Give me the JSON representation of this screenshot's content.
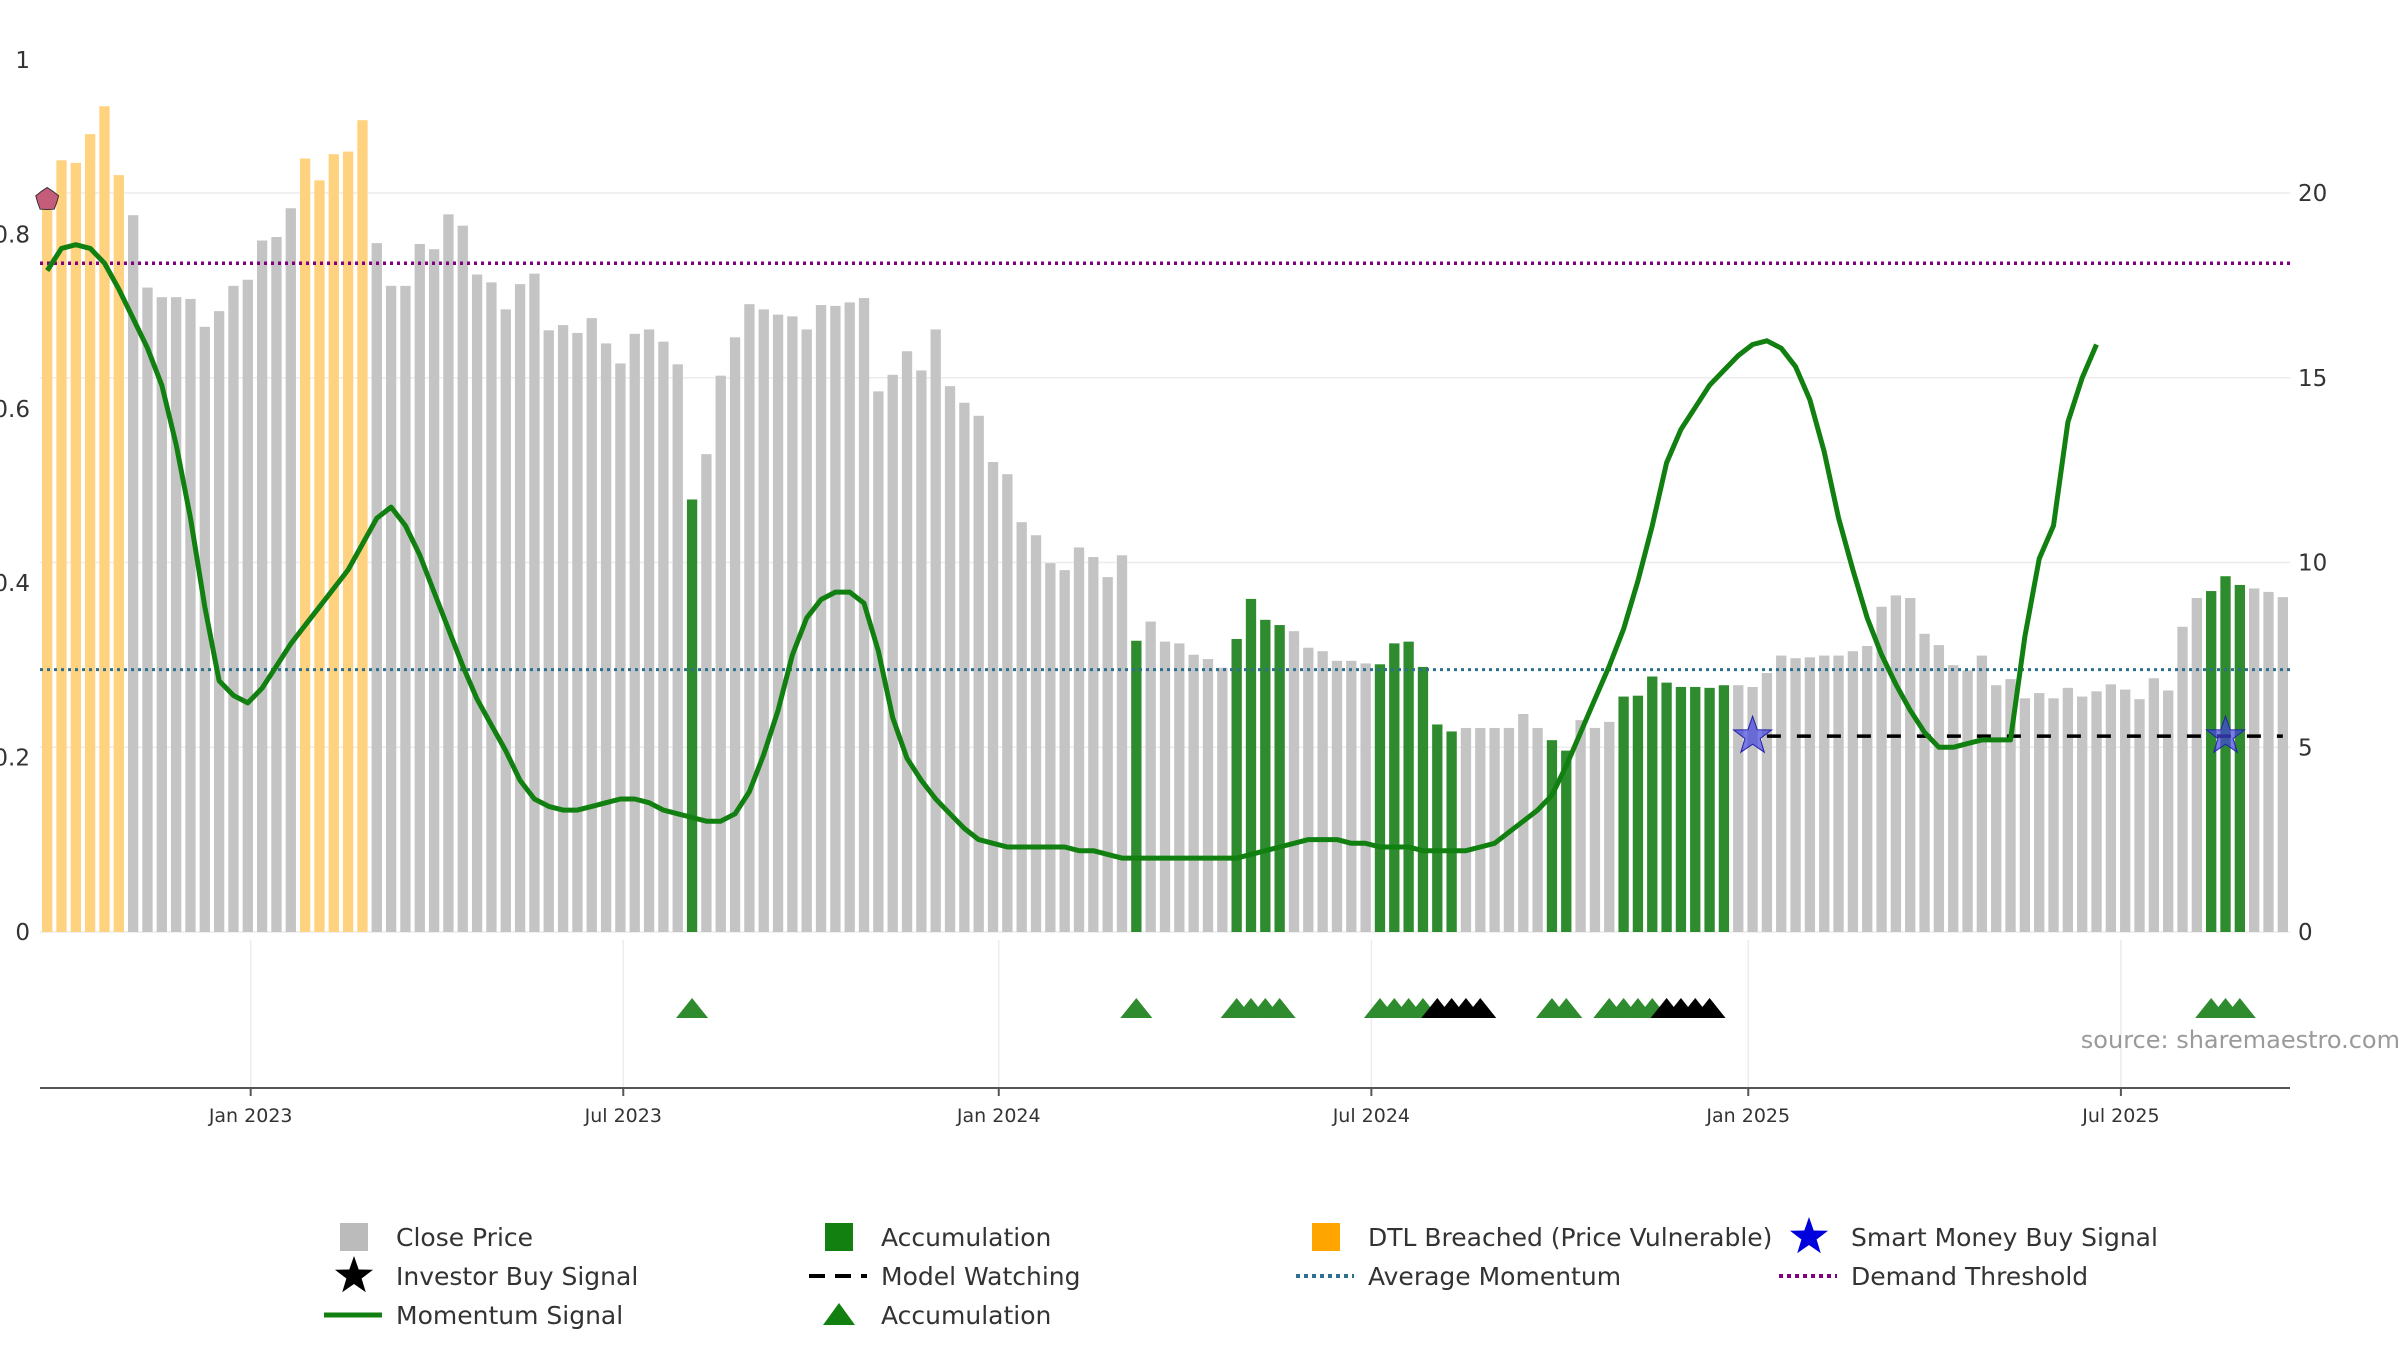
{
  "source_text": "source: sharemaestro.com",
  "colors": {
    "close_price": "#c4c4c4",
    "accumulation": "#2e8b2e",
    "dtl_breached": "#ffd27f",
    "momentum": "#118011",
    "average_momentum": "#2f6f8f",
    "demand_threshold": "#800080",
    "smart_money": "#2222cc",
    "investor_buy": "#000000",
    "model_watching": "#000000"
  },
  "legend": [
    {
      "key": "close_price",
      "label": "Close Price",
      "symbol": "square",
      "color": "#bbbbbb"
    },
    {
      "key": "accumulation_bar",
      "label": "Accumulation",
      "symbol": "square",
      "color": "#118011"
    },
    {
      "key": "dtl",
      "label": "DTL Breached (Price Vulnerable)",
      "symbol": "square",
      "color": "#ffa500"
    },
    {
      "key": "smart_money",
      "label": "Smart Money Buy Signal",
      "symbol": "star",
      "color": "#0000dd"
    },
    {
      "key": "investor_buy",
      "label": "Investor Buy Signal",
      "symbol": "star",
      "color": "#000000"
    },
    {
      "key": "model_watching",
      "label": "Model Watching",
      "symbol": "dash",
      "color": "#000000"
    },
    {
      "key": "avg_momentum",
      "label": "Average Momentum",
      "symbol": "dot",
      "color": "#2f6f8f"
    },
    {
      "key": "demand_threshold",
      "label": "Demand Threshold",
      "symbol": "dot",
      "color": "#800080"
    },
    {
      "key": "momentum",
      "label": "Momentum Signal",
      "symbol": "line",
      "color": "#118011"
    },
    {
      "key": "accumulation_tri",
      "label": "Accumulation",
      "symbol": "triangle",
      "color": "#118011"
    }
  ],
  "chart_data": {
    "type": "bar",
    "title": "",
    "xlabel": "",
    "ylabel": "",
    "x_ticks": [
      "Jan 2023",
      "Jul 2023",
      "Jan 2024",
      "Jul 2024",
      "Jan 2025",
      "Jul 2025"
    ],
    "left_axis": {
      "ylim": [
        0,
        1
      ],
      "ticks": [
        "0",
        "0.2",
        "0.4",
        "0.6",
        "0.8",
        "1"
      ]
    },
    "right_axis": {
      "ylim": [
        0,
        23.6
      ],
      "ticks": [
        "0",
        "5",
        "10",
        "15",
        "20"
      ]
    },
    "grid": true,
    "legend_position": "bottom",
    "weeks_start": 0,
    "close_price_bars": [
      0.845,
      0.885,
      0.882,
      0.915,
      0.947,
      0.868,
      0.822,
      0.739,
      0.728,
      0.728,
      0.726,
      0.694,
      0.712,
      0.741,
      0.748,
      0.793,
      0.797,
      0.83,
      0.887,
      0.862,
      0.892,
      0.895,
      0.931,
      0.79,
      0.741,
      0.741,
      0.789,
      0.783,
      0.823,
      0.81,
      0.754,
      0.745,
      0.714,
      0.743,
      0.755,
      0.69,
      0.696,
      0.687,
      0.704,
      0.675,
      0.652,
      0.686,
      0.691,
      0.677,
      0.651,
      0.496,
      0.548,
      0.638,
      0.682,
      0.72,
      0.714,
      0.708,
      0.706,
      0.691,
      0.719,
      0.718,
      0.722,
      0.727,
      0.62,
      0.639,
      0.666,
      0.644,
      0.691,
      0.626,
      0.607,
      0.592,
      0.539,
      0.525,
      0.47,
      0.455,
      0.423,
      0.415,
      0.441,
      0.43,
      0.407,
      0.432,
      0.334,
      0.356,
      0.333,
      0.331,
      0.318,
      0.313,
      0.303,
      0.336,
      0.382,
      0.358,
      0.352,
      0.345,
      0.326,
      0.322,
      0.311,
      0.311,
      0.308,
      0.307,
      0.331,
      0.333,
      0.304,
      0.238,
      0.23,
      0.234,
      0.234,
      0.234,
      0.234,
      0.25,
      0.234,
      0.22,
      0.208,
      0.243,
      0.234,
      0.241,
      0.27,
      0.271,
      0.293,
      0.286,
      0.281,
      0.281,
      0.28,
      0.283,
      0.283,
      0.281,
      0.297,
      0.317,
      0.314,
      0.315,
      0.317,
      0.317,
      0.322,
      0.328,
      0.373,
      0.386,
      0.383,
      0.342,
      0.329,
      0.306,
      0.3,
      0.317,
      0.283,
      0.29,
      0.268,
      0.274,
      0.268,
      0.28,
      0.27,
      0.276,
      0.284,
      0.278,
      0.267,
      0.291,
      0.277,
      0.35,
      0.383,
      0.391,
      0.408,
      0.398,
      0.394,
      0.39,
      0.384
    ],
    "bar_category": "0=close price, 1=accumulation, 2=DTL breached",
    "bar_categories": [
      2,
      2,
      2,
      2,
      2,
      2,
      0,
      0,
      0,
      0,
      0,
      0,
      0,
      0,
      0,
      0,
      0,
      0,
      2,
      2,
      2,
      2,
      2,
      0,
      0,
      0,
      0,
      0,
      0,
      0,
      0,
      0,
      0,
      0,
      0,
      0,
      0,
      0,
      0,
      0,
      0,
      0,
      0,
      0,
      0,
      1,
      0,
      0,
      0,
      0,
      0,
      0,
      0,
      0,
      0,
      0,
      0,
      0,
      0,
      0,
      0,
      0,
      0,
      0,
      0,
      0,
      0,
      0,
      0,
      0,
      0,
      0,
      0,
      0,
      0,
      0,
      1,
      0,
      0,
      0,
      0,
      0,
      0,
      1,
      1,
      1,
      1,
      0,
      0,
      0,
      0,
      0,
      0,
      1,
      1,
      1,
      1,
      1,
      1,
      0,
      0,
      0,
      0,
      0,
      0,
      1,
      1,
      0,
      0,
      0,
      1,
      1,
      1,
      1,
      1,
      1,
      1,
      1,
      0,
      0,
      0,
      0,
      0,
      0,
      0,
      0,
      0,
      0,
      0,
      0,
      0,
      0,
      0,
      0,
      0,
      0,
      0,
      0,
      0,
      0,
      0,
      0,
      0,
      0,
      0,
      0,
      0,
      0,
      0,
      0,
      0,
      1,
      1,
      1,
      0,
      0,
      0,
      0,
      0
    ],
    "momentum_signal": [
      17.9,
      18.5,
      18.6,
      18.5,
      18.1,
      17.4,
      16.6,
      15.8,
      14.8,
      13.2,
      11.2,
      8.8,
      6.8,
      6.4,
      6.2,
      6.6,
      7.2,
      7.8,
      8.3,
      8.8,
      9.3,
      9.8,
      10.5,
      11.2,
      11.5,
      11.0,
      10.2,
      9.2,
      8.2,
      7.2,
      6.3,
      5.6,
      4.9,
      4.1,
      3.6,
      3.4,
      3.3,
      3.3,
      3.4,
      3.5,
      3.6,
      3.6,
      3.5,
      3.3,
      3.2,
      3.1,
      3.0,
      3.0,
      3.2,
      3.8,
      4.8,
      6.0,
      7.5,
      8.5,
      9.0,
      9.2,
      9.2,
      8.9,
      7.6,
      5.8,
      4.7,
      4.1,
      3.6,
      3.2,
      2.8,
      2.5,
      2.4,
      2.3,
      2.3,
      2.3,
      2.3,
      2.3,
      2.2,
      2.2,
      2.1,
      2.0,
      2.0,
      2.0,
      2.0,
      2.0,
      2.0,
      2.0,
      2.0,
      2.0,
      2.1,
      2.2,
      2.3,
      2.4,
      2.5,
      2.5,
      2.5,
      2.4,
      2.4,
      2.3,
      2.3,
      2.3,
      2.2,
      2.2,
      2.2,
      2.2,
      2.3,
      2.4,
      2.7,
      3.0,
      3.3,
      3.7,
      4.5,
      5.4,
      6.3,
      7.2,
      8.2,
      9.5,
      11.0,
      12.7,
      13.6,
      14.2,
      14.8,
      15.2,
      15.6,
      15.9,
      16.0,
      15.8,
      15.3,
      14.4,
      13.0,
      11.2,
      9.8,
      8.5,
      7.5,
      6.7,
      6.0,
      5.4,
      5.0,
      5.0,
      5.1,
      5.2,
      5.2,
      5.2,
      8.0,
      10.1,
      11.0,
      13.8,
      15.0,
      15.9
    ],
    "momentum_smooth_note": "momentum in right-axis units",
    "average_momentum": 7.1,
    "demand_threshold": 18.1,
    "accumulation_triangles": [
      45,
      76,
      83,
      84,
      85,
      86,
      93,
      94,
      95,
      96,
      105,
      106,
      109,
      110,
      111,
      112,
      151,
      152,
      153
    ],
    "investor_buy_triangles": [
      97,
      98,
      99,
      100,
      113,
      114,
      115,
      116
    ],
    "smart_money_stars": [
      {
        "week": 119,
        "value": 5.3
      },
      {
        "week": 152,
        "value": 5.3
      }
    ],
    "model_watching_segments": [
      [
        120,
        156
      ]
    ],
    "dtl_marker": {
      "week": 0,
      "value": 0.84
    },
    "start_month_offset_weeks": -14.7
  }
}
